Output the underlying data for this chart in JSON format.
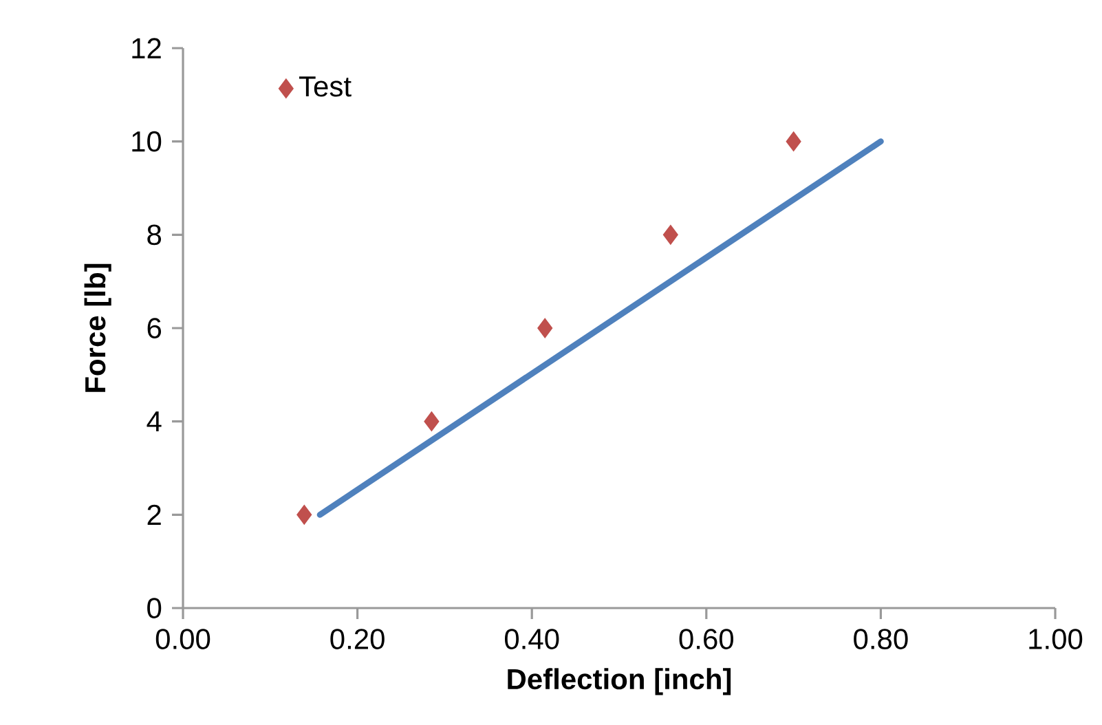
{
  "chart_data": {
    "type": "scatter",
    "xlabel": "Deflection [inch]",
    "ylabel": "Force [lb]",
    "xlim": [
      0,
      1
    ],
    "ylim": [
      0,
      12
    ],
    "xticks": [
      {
        "value": 0,
        "label": "0.00"
      },
      {
        "value": 0.2,
        "label": "0.20"
      },
      {
        "value": 0.4,
        "label": "0.40"
      },
      {
        "value": 0.6,
        "label": "0.60"
      },
      {
        "value": 0.8,
        "label": "0.80"
      },
      {
        "value": 1,
        "label": "1.00"
      }
    ],
    "yticks": [
      0,
      2,
      4,
      6,
      8,
      10,
      12
    ],
    "legend": "top left",
    "series": [
      {
        "name": "Test",
        "marker": "diamond",
        "color": "#c0504d",
        "x": [
          0.139,
          0.285,
          0.415,
          0.559,
          0.7
        ],
        "values": [
          2,
          4,
          6,
          8,
          10
        ]
      },
      {
        "type": "line",
        "color": "#4f81bd",
        "x": [
          0.157,
          0.8
        ],
        "values": [
          2,
          10
        ]
      }
    ]
  }
}
